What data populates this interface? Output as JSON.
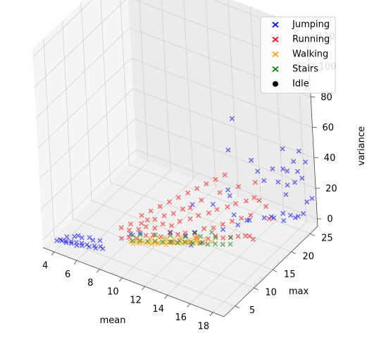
{
  "chart_data": {
    "type": "scatter",
    "projection": "3d",
    "title": "",
    "xlabel": "mean",
    "ylabel": "max",
    "zlabel": "variance",
    "xlim": [
      3,
      19
    ],
    "ylim": [
      2,
      27
    ],
    "zlim": [
      -5,
      125
    ],
    "xticks": [
      "4",
      "6",
      "8",
      "10",
      "12",
      "14",
      "16",
      "18"
    ],
    "yticks": [
      "5",
      "10",
      "15",
      "20",
      "25"
    ],
    "zticks": [
      "0",
      "20",
      "40",
      "60",
      "80",
      "100",
      "120"
    ],
    "grid": true,
    "legend_position": "top-right",
    "series": [
      {
        "name": "Jumping",
        "marker": "x",
        "color": "#0000ff",
        "points": [
          [
            4.0,
            2.8,
            0.5
          ],
          [
            4.2,
            3.2,
            0.8
          ],
          [
            4.4,
            3.0,
            1.0
          ],
          [
            4.6,
            3.4,
            0.6
          ],
          [
            4.8,
            2.9,
            1.2
          ],
          [
            5.0,
            3.6,
            0.9
          ],
          [
            5.2,
            3.1,
            1.4
          ],
          [
            5.4,
            3.8,
            1.0
          ],
          [
            5.6,
            3.3,
            0.7
          ],
          [
            5.8,
            4.0,
            1.1
          ],
          [
            6.0,
            3.5,
            1.3
          ],
          [
            6.2,
            4.2,
            0.8
          ],
          [
            6.5,
            3.9,
            1.0
          ],
          [
            6.8,
            4.4,
            1.2
          ],
          [
            7.0,
            4.1,
            0.9
          ],
          [
            7.2,
            4.8,
            1.0
          ],
          [
            7.5,
            4.5,
            1.1
          ],
          [
            5.0,
            4.5,
            2.0
          ],
          [
            5.5,
            5.0,
            1.5
          ],
          [
            6.0,
            5.5,
            1.8
          ],
          [
            4.5,
            4.0,
            1.6
          ],
          [
            5.2,
            4.9,
            2.2
          ],
          [
            6.4,
            5.2,
            1.9
          ],
          [
            6.9,
            5.6,
            2.1
          ],
          [
            8.5,
            9.0,
            3.0
          ],
          [
            9.0,
            10.0,
            2.5
          ],
          [
            11.0,
            12.0,
            4.0
          ],
          [
            12.5,
            14.0,
            3.5
          ],
          [
            13.5,
            13.0,
            2.0
          ],
          [
            11.5,
            11.0,
            1.5
          ],
          [
            12.0,
            13.0,
            2.2
          ],
          [
            11.8,
            12.0,
            0.8
          ],
          [
            12.6,
            12.5,
            1.0
          ],
          [
            13.0,
            11.5,
            2.5
          ],
          [
            14.0,
            17.0,
            2.5
          ],
          [
            15.0,
            18.0,
            6.0
          ],
          [
            12.5,
            19.0,
            10.0
          ],
          [
            15.0,
            21.0,
            2.0
          ],
          [
            11.0,
            18.0,
            8.0
          ],
          [
            14.0,
            20.0,
            5.0
          ],
          [
            13.0,
            22.0,
            10.0
          ],
          [
            12.5,
            23.0,
            10.0
          ],
          [
            16.0,
            22.0,
            4.0
          ],
          [
            16.5,
            23.0,
            3.0
          ],
          [
            17.0,
            24.0,
            5.0
          ],
          [
            17.5,
            24.5,
            4.0
          ],
          [
            18.0,
            25.0,
            3.5
          ],
          [
            17.2,
            23.5,
            2.0
          ],
          [
            17.8,
            24.8,
            2.5
          ],
          [
            18.3,
            25.5,
            5.0
          ],
          [
            12.0,
            25.0,
            30.0
          ],
          [
            12.5,
            25.0,
            52.0
          ],
          [
            15.5,
            19.0,
            8.0
          ],
          [
            17.0,
            21.0,
            10.0
          ],
          [
            16.0,
            26.0,
            18.0
          ],
          [
            16.5,
            26.0,
            28.0
          ],
          [
            17.0,
            25.0,
            15.0
          ],
          [
            17.0,
            25.5,
            20.0
          ],
          [
            17.5,
            26.0,
            22.0
          ],
          [
            18.0,
            26.5,
            25.0
          ],
          [
            17.8,
            26.0,
            30.0
          ],
          [
            18.2,
            27.0,
            35.0
          ],
          [
            16.8,
            26.2,
            27.0
          ],
          [
            17.2,
            26.8,
            33.0
          ],
          [
            18.5,
            26.0,
            12.0
          ],
          [
            18.8,
            26.5,
            14.0
          ],
          [
            16.2,
            27.0,
            38.0
          ],
          [
            17.6,
            27.2,
            40.0
          ],
          [
            15.2,
            27.0,
            22.0
          ],
          [
            14.8,
            25.8,
            16.0
          ],
          [
            14.2,
            26.0,
            20.0
          ],
          [
            13.5,
            26.5,
            24.0
          ],
          [
            18.0,
            27.0,
            120.0
          ]
        ]
      },
      {
        "name": "Running",
        "marker": "x",
        "color": "#ff0000",
        "points": [
          [
            8.0,
            8.0,
            1.0
          ],
          [
            8.5,
            8.5,
            2.0
          ],
          [
            9.0,
            9.0,
            1.5
          ],
          [
            9.5,
            10.0,
            2.5
          ],
          [
            10.0,
            10.5,
            3.0
          ],
          [
            10.5,
            11.0,
            2.0
          ],
          [
            11.0,
            12.0,
            3.5
          ],
          [
            11.5,
            12.5,
            2.8
          ],
          [
            12.0,
            13.0,
            4.0
          ],
          [
            12.5,
            14.0,
            3.0
          ],
          [
            13.0,
            15.0,
            5.0
          ],
          [
            13.5,
            16.0,
            4.5
          ],
          [
            14.0,
            17.0,
            6.0
          ],
          [
            14.5,
            18.0,
            7.0
          ],
          [
            15.0,
            19.0,
            8.0
          ],
          [
            15.5,
            20.0,
            9.0
          ],
          [
            8.2,
            9.5,
            3.5
          ],
          [
            8.8,
            10.2,
            4.0
          ],
          [
            9.2,
            11.0,
            5.0
          ],
          [
            9.8,
            11.5,
            4.5
          ],
          [
            10.2,
            12.5,
            6.0
          ],
          [
            10.8,
            13.0,
            5.5
          ],
          [
            11.2,
            14.0,
            7.0
          ],
          [
            11.8,
            15.0,
            8.0
          ],
          [
            12.2,
            16.0,
            9.0
          ],
          [
            12.8,
            17.0,
            10.0
          ],
          [
            13.2,
            18.0,
            11.0
          ],
          [
            13.8,
            19.0,
            12.0
          ],
          [
            14.2,
            20.0,
            13.0
          ],
          [
            14.8,
            21.0,
            14.0
          ],
          [
            15.2,
            22.0,
            15.0
          ],
          [
            9.0,
            13.0,
            10.0
          ],
          [
            9.5,
            14.0,
            12.0
          ],
          [
            10.0,
            15.0,
            14.0
          ],
          [
            10.5,
            16.0,
            16.0
          ],
          [
            11.0,
            17.0,
            18.0
          ],
          [
            11.5,
            18.0,
            20.0
          ],
          [
            12.0,
            19.0,
            22.0
          ],
          [
            12.5,
            20.0,
            24.0
          ],
          [
            13.0,
            21.0,
            26.0
          ],
          [
            8.5,
            12.0,
            8.0
          ],
          [
            14.0,
            15.0,
            3.0
          ],
          [
            14.5,
            15.5,
            2.0
          ],
          [
            15.0,
            16.0,
            2.5
          ],
          [
            15.5,
            16.5,
            3.5
          ],
          [
            16.0,
            17.0,
            4.0
          ],
          [
            16.5,
            17.5,
            2.0
          ],
          [
            16.0,
            18.0,
            1.5
          ],
          [
            13.5,
            14.5,
            1.0
          ],
          [
            12.8,
            13.5,
            2.0
          ],
          [
            11.5,
            16.0,
            12.0
          ],
          [
            10.5,
            14.5,
            9.0
          ],
          [
            9.5,
            12.5,
            7.0
          ],
          [
            8.8,
            11.0,
            6.0
          ],
          [
            15.8,
            21.5,
            16.0
          ],
          [
            16.2,
            22.0,
            12.0
          ],
          [
            16.8,
            21.0,
            8.0
          ],
          [
            12.0,
            17.5,
            15.0
          ],
          [
            13.0,
            19.5,
            18.0
          ],
          [
            14.0,
            21.5,
            20.0
          ],
          [
            15.0,
            23.0,
            22.0
          ],
          [
            11.0,
            15.5,
            11.0
          ],
          [
            10.0,
            13.5,
            8.5
          ],
          [
            9.0,
            12.0,
            6.5
          ],
          [
            8.0,
            10.5,
            4.5
          ],
          [
            7.5,
            9.5,
            3.0
          ]
        ]
      },
      {
        "name": "Walking",
        "marker": "x",
        "color": "#ffa500",
        "points": [
          [
            9.0,
            8.0,
            0.5
          ],
          [
            9.2,
            8.3,
            0.8
          ],
          [
            9.4,
            8.5,
            0.6
          ],
          [
            9.6,
            8.8,
            1.0
          ],
          [
            9.8,
            9.0,
            0.7
          ],
          [
            10.0,
            9.2,
            0.9
          ],
          [
            10.2,
            9.5,
            0.5
          ],
          [
            10.4,
            9.7,
            1.1
          ],
          [
            10.6,
            10.0,
            0.8
          ],
          [
            10.8,
            10.2,
            0.6
          ],
          [
            11.0,
            10.5,
            1.0
          ],
          [
            11.2,
            10.7,
            0.9
          ],
          [
            11.4,
            11.0,
            1.2
          ],
          [
            11.6,
            11.2,
            0.7
          ],
          [
            11.8,
            11.5,
            1.0
          ],
          [
            12.0,
            11.7,
            0.8
          ],
          [
            12.2,
            12.0,
            1.3
          ],
          [
            12.4,
            12.2,
            0.9
          ],
          [
            12.6,
            12.5,
            1.1
          ],
          [
            12.8,
            12.7,
            0.6
          ],
          [
            13.0,
            13.0,
            1.4
          ],
          [
            13.2,
            13.2,
            1.0
          ],
          [
            10.0,
            10.0,
            2.0
          ],
          [
            10.5,
            10.5,
            2.5
          ],
          [
            11.0,
            11.0,
            1.8
          ],
          [
            11.5,
            11.5,
            2.2
          ],
          [
            12.0,
            12.0,
            2.8
          ],
          [
            12.5,
            12.5,
            2.0
          ],
          [
            13.0,
            13.2,
            3.0
          ],
          [
            13.5,
            13.8,
            2.5
          ],
          [
            14.0,
            14.0,
            1.5
          ],
          [
            9.5,
            9.0,
            1.5
          ],
          [
            10.3,
            9.0,
            1.2
          ],
          [
            10.7,
            9.5,
            1.6
          ],
          [
            11.3,
            10.0,
            1.4
          ],
          [
            11.7,
            10.8,
            1.7
          ],
          [
            12.3,
            11.3,
            1.9
          ],
          [
            12.7,
            11.8,
            2.1
          ],
          [
            13.3,
            12.5,
            2.3
          ],
          [
            13.7,
            13.0,
            2.0
          ],
          [
            8.8,
            8.0,
            1.0
          ],
          [
            9.1,
            8.8,
            1.3
          ],
          [
            9.9,
            9.8,
            1.6
          ],
          [
            10.9,
            10.9,
            2.4
          ],
          [
            11.9,
            11.9,
            3.2
          ],
          [
            12.9,
            12.8,
            3.6
          ]
        ]
      },
      {
        "name": "Stairs",
        "marker": "x",
        "color": "#008000",
        "points": [
          [
            8.8,
            8.5,
            0.5
          ],
          [
            9.3,
            9.0,
            0.8
          ],
          [
            9.8,
            9.5,
            0.6
          ],
          [
            10.3,
            10.0,
            1.0
          ],
          [
            10.8,
            10.5,
            0.7
          ],
          [
            11.3,
            11.0,
            0.9
          ],
          [
            11.8,
            11.5,
            0.5
          ],
          [
            12.3,
            12.0,
            1.2
          ],
          [
            12.8,
            12.5,
            0.8
          ],
          [
            13.3,
            13.0,
            1.0
          ],
          [
            13.8,
            13.5,
            0.6
          ],
          [
            14.3,
            14.0,
            1.1
          ],
          [
            14.8,
            14.5,
            0.9
          ],
          [
            15.3,
            15.0,
            1.3
          ],
          [
            9.0,
            10.0,
            1.5
          ],
          [
            10.0,
            11.0,
            1.8
          ],
          [
            11.0,
            12.0,
            2.0
          ],
          [
            12.0,
            13.0,
            1.6
          ],
          [
            13.0,
            14.0,
            2.2
          ],
          [
            14.0,
            15.0,
            1.9
          ],
          [
            15.0,
            16.0,
            2.5
          ],
          [
            8.5,
            9.5,
            1.0
          ],
          [
            12.5,
            14.0,
            3.0
          ],
          [
            13.5,
            15.5,
            2.8
          ]
        ]
      },
      {
        "name": "Idle",
        "marker": "o",
        "color": "#000000",
        "points": []
      }
    ]
  }
}
